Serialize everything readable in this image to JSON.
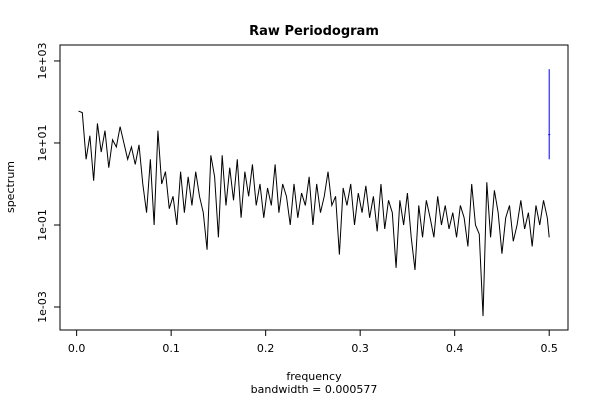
{
  "chart_data": {
    "type": "line",
    "title": "Raw Periodogram",
    "xlabel": "frequency",
    "subtitle": "bandwidth = 0.000577",
    "ylabel": "spectrum",
    "log_y": true,
    "color": "#000000",
    "xlim": [
      -0.0176,
      0.5199
    ],
    "ylim": [
      0.000275,
      2450
    ],
    "xticks": [
      {
        "value": 0,
        "label": "0.0"
      },
      0.1,
      0.2,
      0.3,
      0.4,
      0.5
    ],
    "yticks": [
      {
        "value": 0.001,
        "label": "1e-03"
      },
      {
        "value": 0.1,
        "label": "1e-01"
      },
      {
        "value": 10,
        "label": "1e+01"
      },
      {
        "value": 1000,
        "label": "1e+03"
      }
    ],
    "x": [
      0.002,
      0.006,
      0.01,
      0.014,
      0.018,
      0.022,
      0.026,
      0.03,
      0.034,
      0.038,
      0.042,
      0.046,
      0.05,
      0.054,
      0.058,
      0.062,
      0.066,
      0.07,
      0.074,
      0.078,
      0.082,
      0.086,
      0.09,
      0.094,
      0.098,
      0.102,
      0.106,
      0.11,
      0.114,
      0.118,
      0.122,
      0.126,
      0.13,
      0.134,
      0.138,
      0.142,
      0.146,
      0.15,
      0.154,
      0.158,
      0.162,
      0.166,
      0.17,
      0.174,
      0.178,
      0.182,
      0.186,
      0.19,
      0.194,
      0.198,
      0.202,
      0.206,
      0.21,
      0.214,
      0.218,
      0.222,
      0.226,
      0.23,
      0.234,
      0.238,
      0.242,
      0.246,
      0.25,
      0.254,
      0.258,
      0.262,
      0.266,
      0.27,
      0.274,
      0.278,
      0.282,
      0.286,
      0.29,
      0.294,
      0.298,
      0.302,
      0.306,
      0.31,
      0.314,
      0.318,
      0.322,
      0.326,
      0.33,
      0.334,
      0.338,
      0.342,
      0.346,
      0.35,
      0.354,
      0.358,
      0.362,
      0.366,
      0.37,
      0.374,
      0.378,
      0.382,
      0.386,
      0.39,
      0.394,
      0.398,
      0.402,
      0.406,
      0.41,
      0.414,
      0.418,
      0.422,
      0.426,
      0.43,
      0.434,
      0.438,
      0.442,
      0.446,
      0.45,
      0.454,
      0.458,
      0.462,
      0.466,
      0.47,
      0.474,
      0.478,
      0.482,
      0.486,
      0.49,
      0.494,
      0.498,
      0.5
    ],
    "values": [
      60,
      55,
      4,
      15,
      1.2,
      30,
      6,
      20,
      2.5,
      12,
      8,
      25,
      10,
      4,
      8,
      3,
      9,
      1,
      0.2,
      4,
      0.1,
      20,
      1,
      2,
      0.25,
      0.5,
      0.1,
      2,
      0.2,
      1.5,
      0.3,
      2,
      0.5,
      0.2,
      0.025,
      5,
      1.5,
      0.05,
      5,
      0.3,
      2.5,
      0.4,
      4,
      0.15,
      2,
      0.5,
      3,
      0.3,
      1,
      0.15,
      0.8,
      0.3,
      3,
      0.2,
      1,
      0.5,
      0.1,
      1,
      0.15,
      0.6,
      0.3,
      1.5,
      0.1,
      1,
      0.2,
      0.5,
      2,
      0.3,
      0.5,
      0.019,
      0.8,
      0.3,
      1,
      0.1,
      0.6,
      0.2,
      0.9,
      0.15,
      0.5,
      0.07,
      1,
      0.08,
      0.4,
      0.2,
      0.009,
      0.4,
      0.1,
      0.6,
      0.05,
      0.008,
      0.3,
      0.05,
      0.4,
      0.15,
      0.05,
      0.5,
      0.1,
      0.3,
      0.08,
      0.2,
      0.05,
      0.3,
      0.15,
      0.03,
      1,
      0.1,
      0.06,
      0.0006,
      1.1,
      0.05,
      0.7,
      0.2,
      0.02,
      0.15,
      0.3,
      0.04,
      0.1,
      0.4,
      0.08,
      0.2,
      0.03,
      0.3,
      0.1,
      0.4,
      0.15,
      0.05
    ],
    "ci": {
      "x": 0.5,
      "lower": 4,
      "center": 16,
      "upper": 630,
      "color": "#0000ff"
    }
  }
}
